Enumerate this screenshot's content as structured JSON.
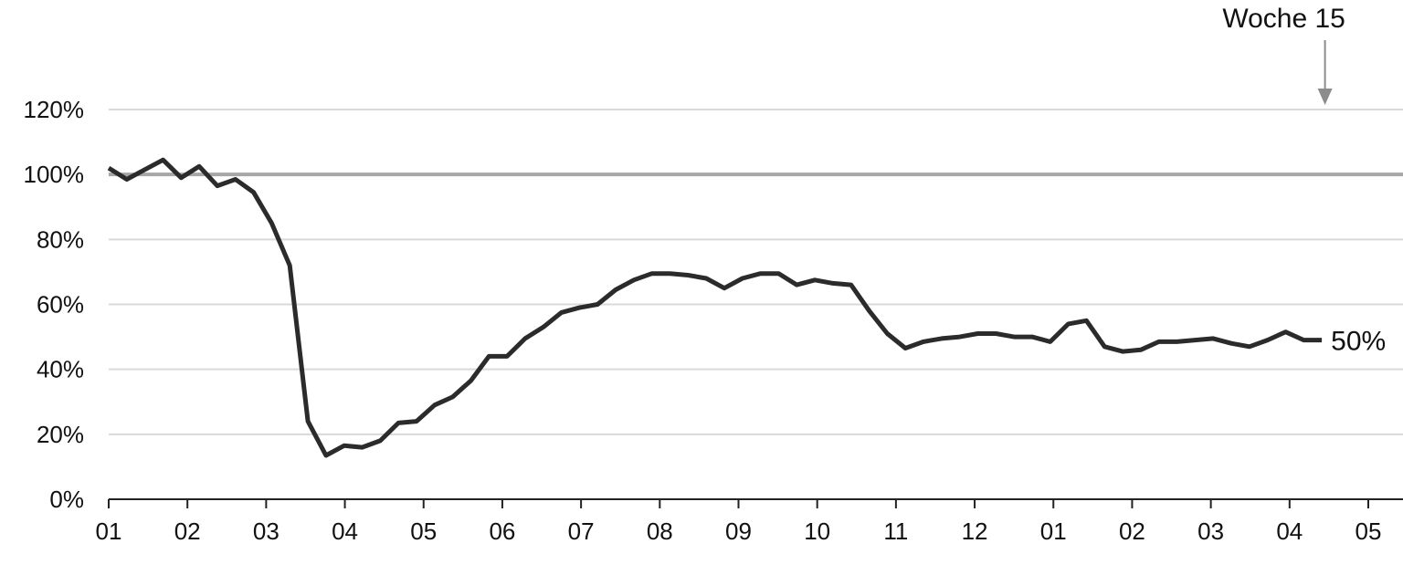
{
  "chart_data": {
    "type": "line",
    "title": "",
    "xlabel": "",
    "ylabel": "",
    "ylim": [
      0,
      120
    ],
    "xlim": [
      0,
      16
    ],
    "y_ticks": [
      0,
      20,
      40,
      60,
      80,
      100,
      120
    ],
    "y_tick_labels": [
      "0%",
      "20%",
      "40%",
      "60%",
      "80%",
      "100%",
      "120%"
    ],
    "x_ticks": [
      0,
      1,
      2,
      3,
      4,
      5,
      6,
      7,
      8,
      9,
      10,
      11,
      12,
      13,
      14,
      15,
      16
    ],
    "x_tick_labels": [
      "01",
      "02",
      "03",
      "04",
      "05",
      "06",
      "07",
      "08",
      "09",
      "10",
      "11",
      "12",
      "01",
      "02",
      "03",
      "04",
      "05"
    ],
    "grid": true,
    "reference_line": {
      "y": 100,
      "color": "#a6a6a6"
    },
    "annotation": {
      "text": "Woche 15",
      "x": 15.45
    },
    "end_label": "50%",
    "colors": {
      "line": "#2b2b2b",
      "grid": "#d9d9d9",
      "axis": "#222222",
      "reference": "#a6a6a6",
      "arrow": "#8c8c8c"
    },
    "series": [
      {
        "x": [
          0.0,
          0.23,
          0.46,
          0.69,
          0.92,
          1.15,
          1.38,
          1.61,
          1.84,
          2.07,
          2.3,
          2.53,
          2.76,
          2.99,
          3.22,
          3.45,
          3.68,
          3.91,
          4.14,
          4.37,
          4.6,
          4.83,
          5.06,
          5.29,
          5.52,
          5.75,
          5.98,
          6.21,
          6.44,
          6.67,
          6.9,
          7.13,
          7.36,
          7.59,
          7.82,
          8.05,
          8.28,
          8.51,
          8.74,
          8.97,
          9.2,
          9.43,
          9.66,
          9.89,
          10.12,
          10.35,
          10.58,
          10.81,
          11.04,
          11.27,
          11.5,
          11.73,
          11.96,
          12.19,
          12.42,
          12.65,
          12.88,
          13.11,
          13.34,
          13.57,
          13.8,
          14.03,
          14.26,
          14.49,
          14.72,
          14.95,
          15.18,
          15.41
        ],
        "values": [
          102,
          98.5,
          101.5,
          104.5,
          99,
          102.5,
          96.5,
          98.5,
          94.5,
          85,
          72,
          24,
          13.5,
          16.5,
          16,
          18,
          23.5,
          24,
          29,
          31.5,
          36.5,
          44,
          44,
          49.5,
          53,
          57.5,
          59,
          60,
          64.5,
          67.5,
          69.5,
          69.5,
          69,
          68,
          65,
          68,
          69.5,
          69.5,
          66,
          67.5,
          66.5,
          66,
          58,
          51,
          46.5,
          48.5,
          49.5,
          50,
          51,
          51,
          50,
          50,
          48.5,
          54,
          55,
          47,
          45.5,
          46,
          48.5,
          48.5,
          49,
          49.5,
          48,
          47,
          49,
          51.5,
          49,
          49
        ]
      }
    ]
  }
}
